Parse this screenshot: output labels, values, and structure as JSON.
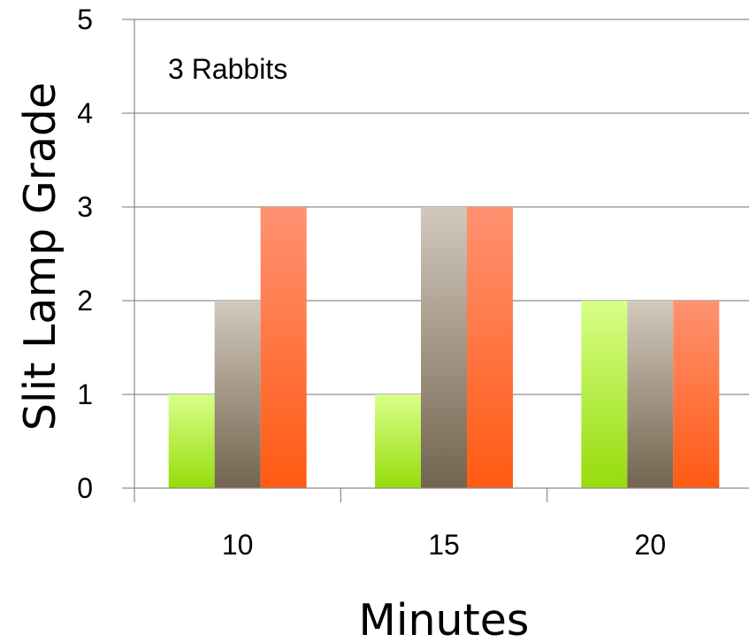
{
  "chart_data": {
    "type": "bar",
    "categories": [
      "10",
      "15",
      "20"
    ],
    "series": [
      {
        "values": [
          1,
          1,
          2
        ],
        "color_top": "#d8ff88",
        "color_bottom": "#96dc0c"
      },
      {
        "values": [
          2,
          3,
          2
        ],
        "color_top": "#d2c9bc",
        "color_bottom": "#72644f"
      },
      {
        "values": [
          3,
          3,
          2
        ],
        "color_top": "#ff9272",
        "color_bottom": "#ff5a12"
      }
    ],
    "xlabel": "Minutes",
    "ylabel": "Slit Lamp Grade",
    "ylim": [
      0,
      5
    ],
    "yticks": [
      "0",
      "1",
      "2",
      "3",
      "4",
      "5"
    ],
    "grid": true,
    "annotation": "3 Rabbits",
    "colors": {
      "grid": "#8c8c8c",
      "axis": "#8c8c8c"
    }
  }
}
